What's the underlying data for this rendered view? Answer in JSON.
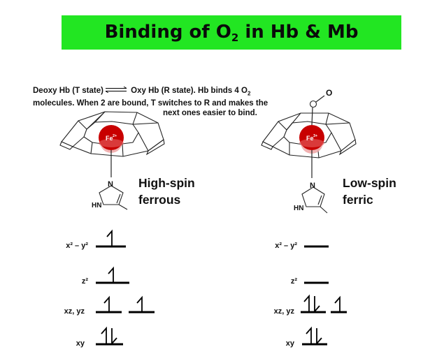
{
  "title": {
    "prefix": "Binding of O",
    "subscript": "2",
    "suffix": " in Hb & Mb"
  },
  "description": {
    "line1_a": "Deoxy Hb (T state)",
    "line1_b": " Oxy Hb (R state). Hb binds 4 O",
    "line1_sub": "2",
    "line2": "molecules. When 2 are bound, T switches to R and makes the",
    "line3": "next ones easier to bind."
  },
  "left_panel": {
    "iron_label": "Fe",
    "iron_charge": "2+",
    "imidazole_n": "N",
    "imidazole_hn": "HN",
    "spin_line1": "High-spin",
    "spin_line2": "ferrous",
    "orbitals": [
      {
        "label": "x² – y²",
        "electrons": "1 up"
      },
      {
        "label": "z²",
        "electrons": "1 up"
      },
      {
        "label": "xz, yz",
        "electrons": "1 up, 1 up"
      },
      {
        "label": "xy",
        "electrons": "paired"
      }
    ]
  },
  "right_panel": {
    "iron_label": "Fe",
    "iron_charge": "3+",
    "oxygen_label": "O",
    "imidazole_n": "N",
    "imidazole_hn": "HN",
    "spin_line1": "Low-spin",
    "spin_line2": "ferric",
    "orbitals": [
      {
        "label": "x² – y²",
        "electrons": "empty"
      },
      {
        "label": "z²",
        "electrons": "empty"
      },
      {
        "label": "xz, yz",
        "electrons": "paired, 1 up"
      },
      {
        "label": "xy",
        "electrons": "paired"
      }
    ]
  },
  "colors": {
    "title_background": "#22e622",
    "iron_atom": "#c80000",
    "iron_shadow": "#f0a8a8"
  }
}
